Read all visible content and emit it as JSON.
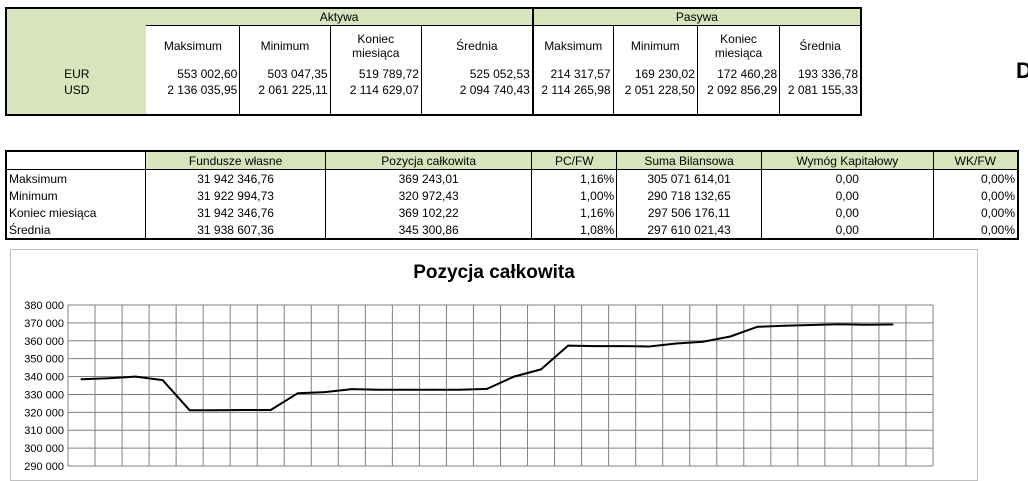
{
  "currency_table": {
    "group_aktywa": "Aktywa",
    "group_pasywa": "Pasywa",
    "col_max": "Maksimum",
    "col_min": "Minimum",
    "col_end_1": "Koniec",
    "col_end_2": "miesiąca",
    "col_avg": "Średnia",
    "rows": [
      {
        "label": "EUR",
        "a_max": "553 002,60",
        "a_min": "503 047,35",
        "a_end": "519 789,72",
        "a_avg": "525 052,53",
        "p_max": "214 317,57",
        "p_min": "169 230,02",
        "p_end": "172 460,28",
        "p_avg": "193 336,78"
      },
      {
        "label": "USD",
        "a_max": "2 136 035,95",
        "a_min": "2 061 225,11",
        "a_end": "2 114 629,07",
        "a_avg": "2 094 740,43",
        "p_max": "2 114 265,98",
        "p_min": "2 051 228,50",
        "p_end": "2 092 856,29",
        "p_avg": "2 081 155,33"
      }
    ]
  },
  "summary_table": {
    "headers": [
      "Fundusze własne",
      "Pozycja całkowita",
      "PC/FW",
      "Suma Bilansowa",
      "Wymóg Kapitałowy",
      "WK/FW"
    ],
    "rows": [
      {
        "label": "Maksimum",
        "fw": "31 942 346,76",
        "pc": "369 243,01",
        "pcfw": "1,16%",
        "sb": "305 071 614,01",
        "wk": "0,00",
        "wkfw": "0,00%"
      },
      {
        "label": "Minimum",
        "fw": "31 922 994,73",
        "pc": "320 972,43",
        "pcfw": "1,00%",
        "sb": "290 718 132,65",
        "wk": "0,00",
        "wkfw": "0,00%"
      },
      {
        "label": "Koniec miesiąca",
        "fw": "31 942 346,76",
        "pc": "369 102,22",
        "pcfw": "1,16%",
        "sb": "297 506 176,11",
        "wk": "0,00",
        "wkfw": "0,00%"
      },
      {
        "label": "Średnia",
        "fw": "31 938 607,36",
        "pc": "345 300,86",
        "pcfw": "1,08%",
        "sb": "297 610 021,43",
        "wk": "0,00",
        "wkfw": "0,00%"
      }
    ]
  },
  "edge_glyph": "D",
  "chart_data": {
    "type": "line",
    "title": "Pozycja całkowita",
    "xlabel": "",
    "ylabel": "",
    "ylim": [
      290000,
      380000
    ],
    "y_ticks": [
      "380 000",
      "370 000",
      "360 000",
      "350 000",
      "340 000",
      "330 000",
      "320 000",
      "310 000",
      "300 000",
      "290 000"
    ],
    "grid": true,
    "legend": "none",
    "line_color": "#000000",
    "series": [
      {
        "values": [
          338500,
          339000,
          340000,
          338000,
          321200,
          321200,
          321300,
          321300,
          330700,
          331300,
          333000,
          332600,
          332600,
          332600,
          332600,
          333100,
          340000,
          344000,
          357300,
          357000,
          357000,
          356800,
          358500,
          359500,
          362400,
          367800,
          368400,
          368800,
          369200,
          369000,
          369100
        ]
      }
    ]
  }
}
